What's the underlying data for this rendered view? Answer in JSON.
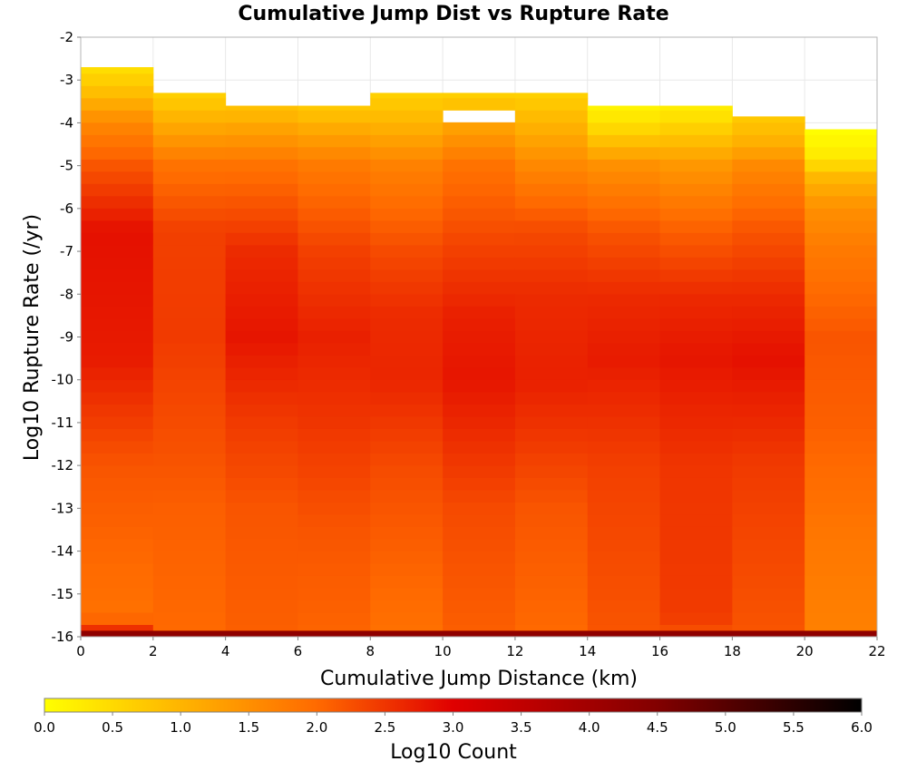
{
  "chart_data": {
    "type": "heatmap",
    "title": "Cumulative Jump Dist vs Rupture Rate",
    "xlabel": "Cumulative Jump Distance (km)",
    "ylabel": "Log10 Rupture Rate (/yr)",
    "xlim": [
      0,
      22
    ],
    "ylim": [
      -16,
      -2
    ],
    "x_ticks": [
      "0",
      "2",
      "4",
      "6",
      "8",
      "10",
      "12",
      "14",
      "16",
      "18",
      "20",
      "22"
    ],
    "y_ticks": [
      "-16",
      "-15",
      "-14",
      "-13",
      "-12",
      "-11",
      "-10",
      "-9",
      "-8",
      "-7",
      "-6",
      "-5",
      "-4",
      "-3",
      "-2"
    ],
    "grid": true,
    "x_bin_edges": [
      0,
      2,
      4,
      6,
      8,
      10,
      12,
      14,
      16,
      18,
      20,
      22
    ],
    "y_bin_size": 0.286,
    "y_bin_count": 49,
    "columns": [
      {
        "x_range": [
          0,
          2
        ],
        "y_top": -2.7,
        "hole": null,
        "control_points": [
          [
            -16.0,
            2.8
          ],
          [
            -15.5,
            1.9
          ],
          [
            -12.0,
            2.2
          ],
          [
            -9.5,
            2.75
          ],
          [
            -6.5,
            2.85
          ],
          [
            -5.0,
            2.2
          ],
          [
            -4.0,
            1.6
          ],
          [
            -3.3,
            0.9
          ],
          [
            -2.7,
            0.4
          ]
        ]
      },
      {
        "x_range": [
          2,
          4
        ],
        "y_top": -3.3,
        "hole": null,
        "control_points": [
          [
            -16.0,
            2.0
          ],
          [
            -13.0,
            2.1
          ],
          [
            -11.5,
            2.25
          ],
          [
            -9.0,
            2.45
          ],
          [
            -6.5,
            2.4
          ],
          [
            -5.0,
            1.9
          ],
          [
            -4.0,
            1.1
          ],
          [
            -3.3,
            0.6
          ]
        ]
      },
      {
        "x_range": [
          4,
          6
        ],
        "y_top": -3.6,
        "hole": null,
        "control_points": [
          [
            -16.0,
            2.1
          ],
          [
            -13.0,
            2.2
          ],
          [
            -11.0,
            2.45
          ],
          [
            -9.0,
            2.8
          ],
          [
            -7.0,
            2.6
          ],
          [
            -5.0,
            1.9
          ],
          [
            -4.2,
            1.3
          ],
          [
            -3.6,
            0.8
          ]
        ]
      },
      {
        "x_range": [
          6,
          8
        ],
        "y_top": -3.6,
        "hole": null,
        "control_points": [
          [
            -16.0,
            2.05
          ],
          [
            -13.5,
            2.2
          ],
          [
            -11.0,
            2.5
          ],
          [
            -9.0,
            2.7
          ],
          [
            -7.0,
            2.4
          ],
          [
            -5.0,
            1.8
          ],
          [
            -4.2,
            1.2
          ],
          [
            -3.6,
            0.7
          ]
        ]
      },
      {
        "x_range": [
          8,
          10
        ],
        "y_top": -3.3,
        "hole": null,
        "control_points": [
          [
            -16.0,
            1.9
          ],
          [
            -12.0,
            2.3
          ],
          [
            -10.0,
            2.65
          ],
          [
            -8.5,
            2.6
          ],
          [
            -7.0,
            2.3
          ],
          [
            -5.0,
            1.7
          ],
          [
            -4.0,
            1.0
          ],
          [
            -3.3,
            0.6
          ]
        ]
      },
      {
        "x_range": [
          10,
          12
        ],
        "y_top": -3.3,
        "hole": [
          -3.85,
          -3.6
        ],
        "control_points": [
          [
            -16.0,
            2.1
          ],
          [
            -13.0,
            2.3
          ],
          [
            -10.0,
            2.8
          ],
          [
            -8.5,
            2.7
          ],
          [
            -7.0,
            2.4
          ],
          [
            -5.0,
            1.9
          ],
          [
            -4.0,
            1.2
          ],
          [
            -3.3,
            0.6
          ]
        ]
      },
      {
        "x_range": [
          12,
          14
        ],
        "y_top": -3.3,
        "hole": null,
        "control_points": [
          [
            -16.0,
            2.0
          ],
          [
            -13.0,
            2.2
          ],
          [
            -10.0,
            2.7
          ],
          [
            -8.0,
            2.6
          ],
          [
            -6.5,
            2.3
          ],
          [
            -5.0,
            1.6
          ],
          [
            -4.0,
            1.0
          ],
          [
            -3.3,
            0.6
          ]
        ]
      },
      {
        "x_range": [
          14,
          16
        ],
        "y_top": -3.6,
        "hole": null,
        "control_points": [
          [
            -16.0,
            2.2
          ],
          [
            -12.0,
            2.4
          ],
          [
            -9.5,
            2.75
          ],
          [
            -8.0,
            2.6
          ],
          [
            -6.5,
            2.2
          ],
          [
            -5.0,
            1.5
          ],
          [
            -4.2,
            0.6
          ],
          [
            -3.6,
            0.1
          ]
        ]
      },
      {
        "x_range": [
          16,
          18
        ],
        "y_top": -3.6,
        "hole": null,
        "control_points": [
          [
            -16.0,
            2.2
          ],
          [
            -15.5,
            2.45
          ],
          [
            -12.0,
            2.5
          ],
          [
            -9.5,
            2.8
          ],
          [
            -8.0,
            2.6
          ],
          [
            -6.5,
            2.1
          ],
          [
            -5.0,
            1.4
          ],
          [
            -4.2,
            0.7
          ],
          [
            -3.6,
            0.2
          ]
        ]
      },
      {
        "x_range": [
          18,
          20
        ],
        "y_top": -3.85,
        "hole": null,
        "control_points": [
          [
            -16.0,
            2.2
          ],
          [
            -12.0,
            2.45
          ],
          [
            -9.5,
            2.85
          ],
          [
            -8.0,
            2.6
          ],
          [
            -6.5,
            2.2
          ],
          [
            -5.0,
            1.6
          ],
          [
            -4.5,
            1.1
          ],
          [
            -3.85,
            0.7
          ]
        ]
      },
      {
        "x_range": [
          20,
          22
        ],
        "y_top": -4.15,
        "hole": null,
        "control_points": [
          [
            -16.0,
            1.7
          ],
          [
            -14.0,
            1.8
          ],
          [
            -11.0,
            2.1
          ],
          [
            -9.0,
            2.2
          ],
          [
            -7.0,
            1.8
          ],
          [
            -6.0,
            1.5
          ],
          [
            -5.3,
            1.0
          ],
          [
            -4.8,
            0.3
          ],
          [
            -4.15,
            0.0
          ]
        ]
      }
    ],
    "floor_row": {
      "y_range": [
        -16.0,
        -15.86
      ],
      "value": 4.3
    },
    "colorbar": {
      "label": "Log10 Count",
      "range": [
        0.0,
        6.0
      ],
      "tick_labels": [
        "0.0",
        "0.5",
        "1.0",
        "1.5",
        "2.0",
        "2.5",
        "3.0",
        "3.5",
        "4.0",
        "4.5",
        "5.0",
        "5.5",
        "6.0"
      ],
      "stops": [
        {
          "value": 0.0,
          "color": "#ffff00"
        },
        {
          "value": 2.0,
          "color": "#ff6a00"
        },
        {
          "value": 3.0,
          "color": "#e00000"
        },
        {
          "value": 4.5,
          "color": "#820000"
        },
        {
          "value": 6.0,
          "color": "#000000"
        }
      ]
    }
  }
}
